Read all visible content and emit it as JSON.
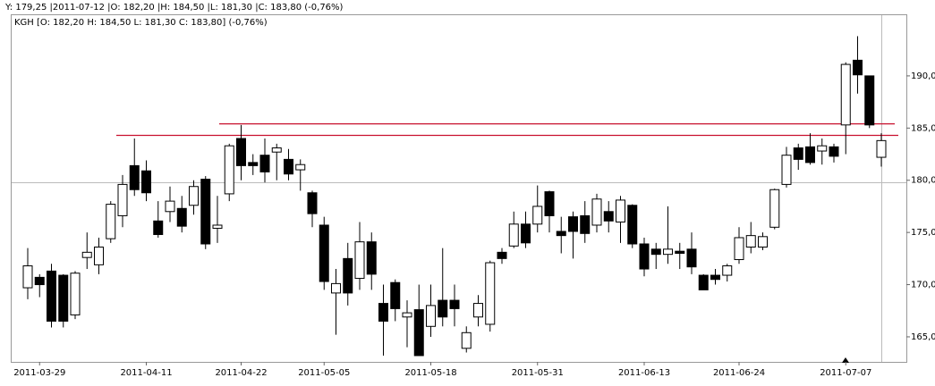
{
  "chart_data": {
    "type": "candlestick",
    "title": "Y: 179,25 |2011-07-12 |O: 182,20 |H: 184,50 |L: 181,30 |C: 183,80 (-0,76%)",
    "subtitle": "KGH [O: 182,20  H: 184,50  L: 181,30  C: 183,80] (-0,76%)",
    "categories": [
      null,
      "2011-03-29",
      null,
      null,
      null,
      null,
      null,
      null,
      null,
      null,
      "2011-04-11",
      null,
      null,
      null,
      null,
      null,
      null,
      null,
      "2011-04-22",
      null,
      null,
      null,
      null,
      null,
      null,
      "2011-05-05",
      null,
      null,
      null,
      null,
      null,
      null,
      null,
      null,
      "2011-05-18",
      null,
      null,
      null,
      null,
      null,
      null,
      null,
      null,
      "2011-05-31",
      null,
      null,
      null,
      null,
      null,
      null,
      null,
      null,
      "2011-06-13",
      null,
      null,
      null,
      null,
      null,
      null,
      null,
      "2011-06-24",
      null,
      null,
      null,
      null,
      null,
      null,
      null,
      null,
      "2011-07-07",
      null,
      null,
      null
    ],
    "open": [
      169.7,
      170.7,
      171.3,
      170.9,
      167.1,
      172.6,
      171.9,
      174.4,
      176.6,
      181.4,
      180.9,
      176.1,
      177,
      177.3,
      177.6,
      180.1,
      175.4,
      178.7,
      184,
      181.7,
      182.4,
      182.7,
      182,
      181,
      178.8,
      175.7,
      169.2,
      172.5,
      170.6,
      174.1,
      168.2,
      170.2,
      166.9,
      167.6,
      166,
      168.5,
      168.5,
      163.9,
      166.9,
      166.2,
      173.1,
      173.7,
      175.8,
      175.8,
      178.9,
      175.1,
      176.5,
      176.6,
      175.7,
      177,
      176,
      177.6,
      173.9,
      173.4,
      172.9,
      173.2,
      173.4,
      170.9,
      170.9,
      170.9,
      172.4,
      173.6,
      173.6,
      175.5,
      179.6,
      183.1,
      183.2,
      182.8,
      183.2,
      185.3,
      191.5,
      190,
      182.2
    ],
    "high": [
      173.5,
      171,
      172,
      171,
      171.3,
      175,
      174.5,
      178,
      180.5,
      184,
      181.9,
      178,
      179.4,
      178.5,
      180,
      180.4,
      178.5,
      183.5,
      185.3,
      182.5,
      184,
      183.5,
      183,
      182,
      179,
      176.5,
      171.5,
      174,
      176,
      175,
      170,
      170.5,
      168.5,
      170,
      170,
      173.5,
      170,
      166,
      169,
      172.3,
      173.5,
      177,
      177,
      179.5,
      179,
      176.5,
      177,
      178,
      178.7,
      178,
      178.5,
      177.7,
      174.5,
      174,
      177.5,
      174,
      175,
      171,
      171.5,
      172,
      175.5,
      176,
      175,
      179.2,
      183.2,
      183.5,
      184.5,
      184,
      183.5,
      191.3,
      193.8,
      190,
      184.5
    ],
    "low": [
      168.6,
      168.8,
      165.9,
      165.9,
      166.7,
      171.5,
      171,
      174,
      175.5,
      178.5,
      178,
      174.5,
      176,
      175,
      176.7,
      173.4,
      174,
      178,
      180,
      180.5,
      179.8,
      180,
      180,
      179,
      175.5,
      169.5,
      165.2,
      168,
      169.5,
      169.5,
      163.2,
      166.5,
      164,
      163.2,
      165,
      166,
      166,
      163.5,
      166,
      165.5,
      172,
      173.5,
      173.5,
      175,
      175,
      173,
      172.5,
      174,
      175,
      175,
      174,
      173.5,
      170.8,
      171.5,
      172,
      171.5,
      171,
      169.5,
      170,
      170.3,
      172,
      173,
      173.3,
      175.3,
      179.3,
      181,
      181.5,
      181.5,
      181.7,
      182.5,
      188.3,
      185,
      181.3
    ],
    "close": [
      171.8,
      170,
      166.5,
      166.5,
      171.1,
      173.1,
      173.6,
      177.7,
      179.6,
      179.1,
      178.8,
      174.8,
      178,
      175.6,
      179.4,
      173.9,
      175.7,
      183.3,
      181.4,
      181.4,
      180.8,
      183.1,
      180.6,
      181.5,
      176.8,
      170.3,
      170.1,
      169.2,
      174.1,
      171,
      166.5,
      167.7,
      167.3,
      163.2,
      168,
      166.9,
      167.7,
      165.4,
      168.2,
      172.1,
      172.5,
      175.8,
      174,
      177.5,
      176.6,
      174.7,
      175.1,
      174.9,
      178.2,
      176.1,
      178.1,
      173.9,
      171.5,
      172.9,
      173.4,
      173,
      171.7,
      169.5,
      170.5,
      171.8,
      174.5,
      174.7,
      174.6,
      179.1,
      182.4,
      182,
      181.7,
      183.3,
      182.3,
      191.1,
      190.1,
      185.3,
      183.8
    ],
    "up_color": "#ffffff",
    "down_color": "#000000",
    "lines": [
      {
        "value": 184.3,
        "color": "#c8102e"
      },
      {
        "value": 185.4,
        "color": "#c8102e"
      }
    ],
    "ylim": [
      162.6,
      195.9
    ],
    "yticks": [
      {
        "value": 165,
        "label": "165,0"
      },
      {
        "value": 170,
        "label": "170,0"
      },
      {
        "value": 175,
        "label": "175,0"
      },
      {
        "value": 180,
        "label": "180,0"
      },
      {
        "value": 185,
        "label": "185,0"
      },
      {
        "value": 190,
        "label": "190,0"
      }
    ]
  }
}
